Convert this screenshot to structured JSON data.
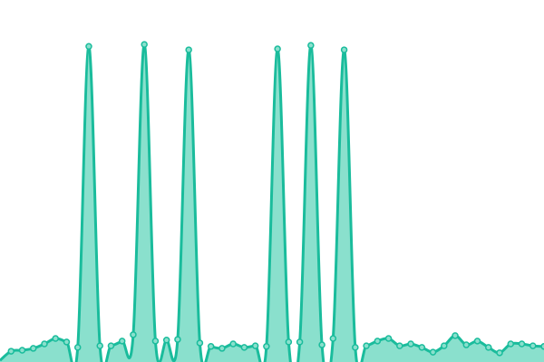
{
  "chart_data": {
    "type": "area",
    "title": "",
    "xlabel": "",
    "ylabel": "",
    "ylim": [
      0,
      114
    ],
    "grid": false,
    "legend": "none",
    "markers": true,
    "smooth": true,
    "colors": {
      "line": "#1abc9c",
      "fill": "#8ae0cd",
      "marker_fill": "#8ae0cd"
    },
    "series": [
      {
        "values": [
          0.5,
          3.4,
          3.7,
          4.3,
          5.7,
          7.4,
          6.3,
          4.6,
          99.4,
          5.1,
          5.1,
          6.6,
          8.6,
          100,
          6.6,
          6.9,
          7.1,
          98.3,
          6,
          4.9,
          4.3,
          5.7,
          4.6,
          5.1,
          4.9,
          98.6,
          6.3,
          6.3,
          99.7,
          5.4,
          7.4,
          98.3,
          4.6,
          5.1,
          6.6,
          7.4,
          5.1,
          5.7,
          4.6,
          3.1,
          5.1,
          8.3,
          5.4,
          6.6,
          4.6,
          2.9,
          5.7,
          5.7,
          5.1,
          4.9
        ]
      }
    ]
  }
}
